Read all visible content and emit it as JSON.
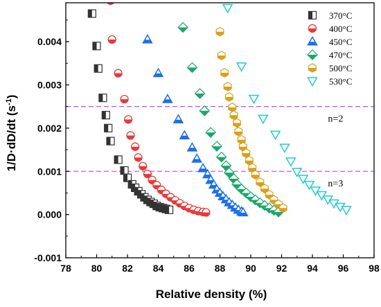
{
  "chart_data": {
    "type": "scatter",
    "xlabel": "Relative density (%)",
    "ylabel": "1/D·dD/dt (s",
    "ylabel_sup": "-1",
    "ylabel_close": ")",
    "xlim": [
      78,
      98
    ],
    "ylim": [
      -0.001,
      0.0049
    ],
    "xticks": [
      "78",
      "80",
      "82",
      "84",
      "86",
      "88",
      "90",
      "92",
      "94",
      "96",
      "98"
    ],
    "yticks": [
      "-0.001",
      "0.000",
      "0.001",
      "0.002",
      "0.003",
      "0.004"
    ],
    "legend_position": "top-right",
    "annotations": [
      {
        "text": "n=2",
        "x": 95.5,
        "y": 0.00215
      },
      {
        "text": "n=3",
        "x": 95.5,
        "y": 0.00065
      }
    ],
    "reference_lines": [
      {
        "y": 0.0025,
        "color": "#cc55ee",
        "style": "dashed"
      },
      {
        "y": 0.001,
        "color": "#cc55ee",
        "style": "dashed"
      }
    ],
    "series": [
      {
        "name": "370°C",
        "color": "#333333",
        "marker": "half-square",
        "x": [
          79.7,
          80.0,
          80.1,
          80.4,
          80.6,
          80.75,
          80.9,
          81.4,
          81.8,
          82.0,
          82.3,
          82.5,
          82.7,
          82.9,
          83.1,
          83.3,
          83.5,
          83.7,
          83.9,
          84.1,
          84.3,
          84.5,
          84.7
        ],
        "y": [
          0.00465,
          0.0039,
          0.00338,
          0.0027,
          0.0023,
          0.002,
          0.0017,
          0.00127,
          0.00102,
          0.00085,
          0.0007,
          0.00062,
          0.00054,
          0.00047,
          0.0004,
          0.00034,
          0.00029,
          0.00025,
          0.0002,
          0.00017,
          0.00015,
          0.00013,
          0.00011
        ]
      },
      {
        "name": "400°C",
        "color": "#e83a3a",
        "marker": "half-circle",
        "x": [
          80.9,
          81.0,
          81.4,
          81.8,
          82.05,
          82.2,
          82.5,
          82.7,
          83.0,
          83.3,
          83.6,
          83.9,
          84.2,
          84.5,
          84.8,
          85.1,
          85.4,
          85.7,
          86.0,
          86.3,
          86.6,
          86.9,
          87.1
        ],
        "y": [
          0.00495,
          0.00405,
          0.00327,
          0.00267,
          0.0022,
          0.00183,
          0.00157,
          0.00132,
          0.00112,
          0.00094,
          0.0008,
          0.00068,
          0.00057,
          0.00048,
          0.0004,
          0.00033,
          0.00026,
          0.0002,
          0.00015,
          0.00011,
          8e-05,
          6e-05,
          5e-05
        ]
      },
      {
        "name": "450°C",
        "color": "#1d6fe8",
        "marker": "triangle",
        "x": [
          83.3,
          84.0,
          84.6,
          85.3,
          85.7,
          86.2,
          86.5,
          86.9,
          87.2,
          87.4,
          87.6,
          87.8,
          88.0,
          88.2,
          88.4,
          88.6,
          88.8,
          89.0,
          89.2,
          89.4,
          89.5
        ],
        "y": [
          0.00405,
          0.00327,
          0.00267,
          0.0022,
          0.00183,
          0.00155,
          0.00129,
          0.00107,
          0.00093,
          0.0008,
          0.00069,
          0.00058,
          0.0005,
          0.00042,
          0.00035,
          0.00028,
          0.00022,
          0.00016,
          0.00011,
          7e-05,
          5e-05
        ]
      },
      {
        "name": "470°C",
        "color": "#1aa86a",
        "marker": "diamond",
        "x": [
          85.6,
          86.2,
          86.7,
          87.0,
          87.4,
          87.8,
          88.1,
          88.4,
          88.6,
          88.9,
          89.1,
          89.4,
          89.7,
          90.0,
          90.3,
          90.6,
          90.9,
          91.2,
          91.5,
          91.8
        ],
        "y": [
          0.00433,
          0.0034,
          0.0028,
          0.0024,
          0.0019,
          0.00158,
          0.00133,
          0.00113,
          0.00097,
          0.00083,
          0.0007,
          0.00059,
          0.0005,
          0.00041,
          0.00034,
          0.00027,
          0.00021,
          0.00015,
          0.0001,
          6e-05
        ]
      },
      {
        "name": "500°C",
        "color": "#d9a11a",
        "marker": "hexagon",
        "x": [
          88.0,
          88.1,
          88.3,
          88.5,
          88.6,
          88.8,
          88.9,
          89.1,
          89.2,
          89.4,
          89.5,
          89.7,
          89.9,
          90.1,
          90.3,
          90.6,
          90.9,
          91.2,
          91.5,
          91.8,
          92.1
        ],
        "y": [
          0.00423,
          0.00368,
          0.00328,
          0.00296,
          0.00272,
          0.00248,
          0.0023,
          0.00212,
          0.00192,
          0.00173,
          0.00157,
          0.00142,
          0.00125,
          0.00108,
          0.00092,
          0.00075,
          0.0006,
          0.00046,
          0.00034,
          0.00024,
          0.00015
        ]
      },
      {
        "name": "530°C",
        "color": "#22cccc",
        "marker": "inverted-triangle",
        "x": [
          88.5,
          89.4,
          90.2,
          90.8,
          91.6,
          92.2,
          92.6,
          93.0,
          93.4,
          93.8,
          94.2,
          94.6,
          95.0,
          95.4,
          95.8,
          96.2
        ],
        "y": [
          0.00478,
          0.00343,
          0.00268,
          0.00222,
          0.00185,
          0.00155,
          0.00123,
          0.00099,
          0.00083,
          0.00069,
          0.00056,
          0.00045,
          0.00035,
          0.00026,
          0.00018,
          0.00011
        ]
      }
    ]
  }
}
